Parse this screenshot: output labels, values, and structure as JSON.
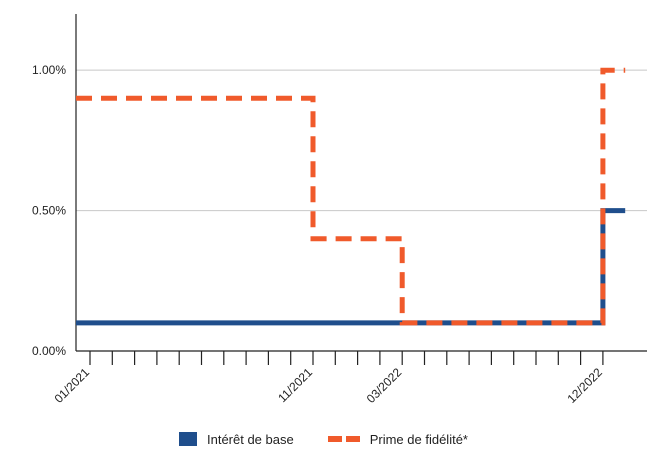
{
  "chart_data": {
    "type": "line",
    "step": true,
    "title": "",
    "xlabel": "",
    "ylabel": "",
    "x_start": "2020-12",
    "x_end": "2023-01",
    "x_tick_months": [
      "2021-01",
      "2021-02",
      "2021-03",
      "2021-04",
      "2021-05",
      "2021-06",
      "2021-07",
      "2021-08",
      "2021-09",
      "2021-10",
      "2021-11",
      "2021-12",
      "2022-01",
      "2022-02",
      "2022-03",
      "2022-04",
      "2022-05",
      "2022-06",
      "2022-07",
      "2022-08",
      "2022-09",
      "2022-10",
      "2022-11",
      "2022-12"
    ],
    "x_tick_labels": [
      {
        "at": "2021-01",
        "label": "01/2021"
      },
      {
        "at": "2021-11",
        "label": "11/2021"
      },
      {
        "at": "2022-03",
        "label": "03/2022"
      },
      {
        "at": "2022-12",
        "label": "12/2022"
      }
    ],
    "ylim": [
      0,
      1.2
    ],
    "y_ticks": [
      {
        "value": 0,
        "label": "0.00%"
      },
      {
        "value": 0.5,
        "label": "0.50%"
      },
      {
        "value": 1,
        "label": "1.00%"
      }
    ],
    "grid": true,
    "legend_position": "bottom-center",
    "series": [
      {
        "name": "Intérêt de base",
        "color": "#1f4e8c",
        "style": "solid",
        "points": [
          {
            "x": "2020-12",
            "y": 0.1
          },
          {
            "x": "2022-12",
            "y": 0.1
          },
          {
            "x": "2022-12",
            "y": 0.5
          },
          {
            "x": "2023-01",
            "y": 0.5
          }
        ]
      },
      {
        "name": "Prime de fidélité*",
        "color": "#f05a2b",
        "style": "dashed",
        "points": [
          {
            "x": "2020-12",
            "y": 0.9
          },
          {
            "x": "2021-11",
            "y": 0.9
          },
          {
            "x": "2021-11",
            "y": 0.4
          },
          {
            "x": "2022-03",
            "y": 0.4
          },
          {
            "x": "2022-03",
            "y": 0.1
          },
          {
            "x": "2022-12",
            "y": 0.1
          },
          {
            "x": "2022-12",
            "y": 1.0
          },
          {
            "x": "2023-01",
            "y": 1.0
          }
        ]
      }
    ]
  }
}
